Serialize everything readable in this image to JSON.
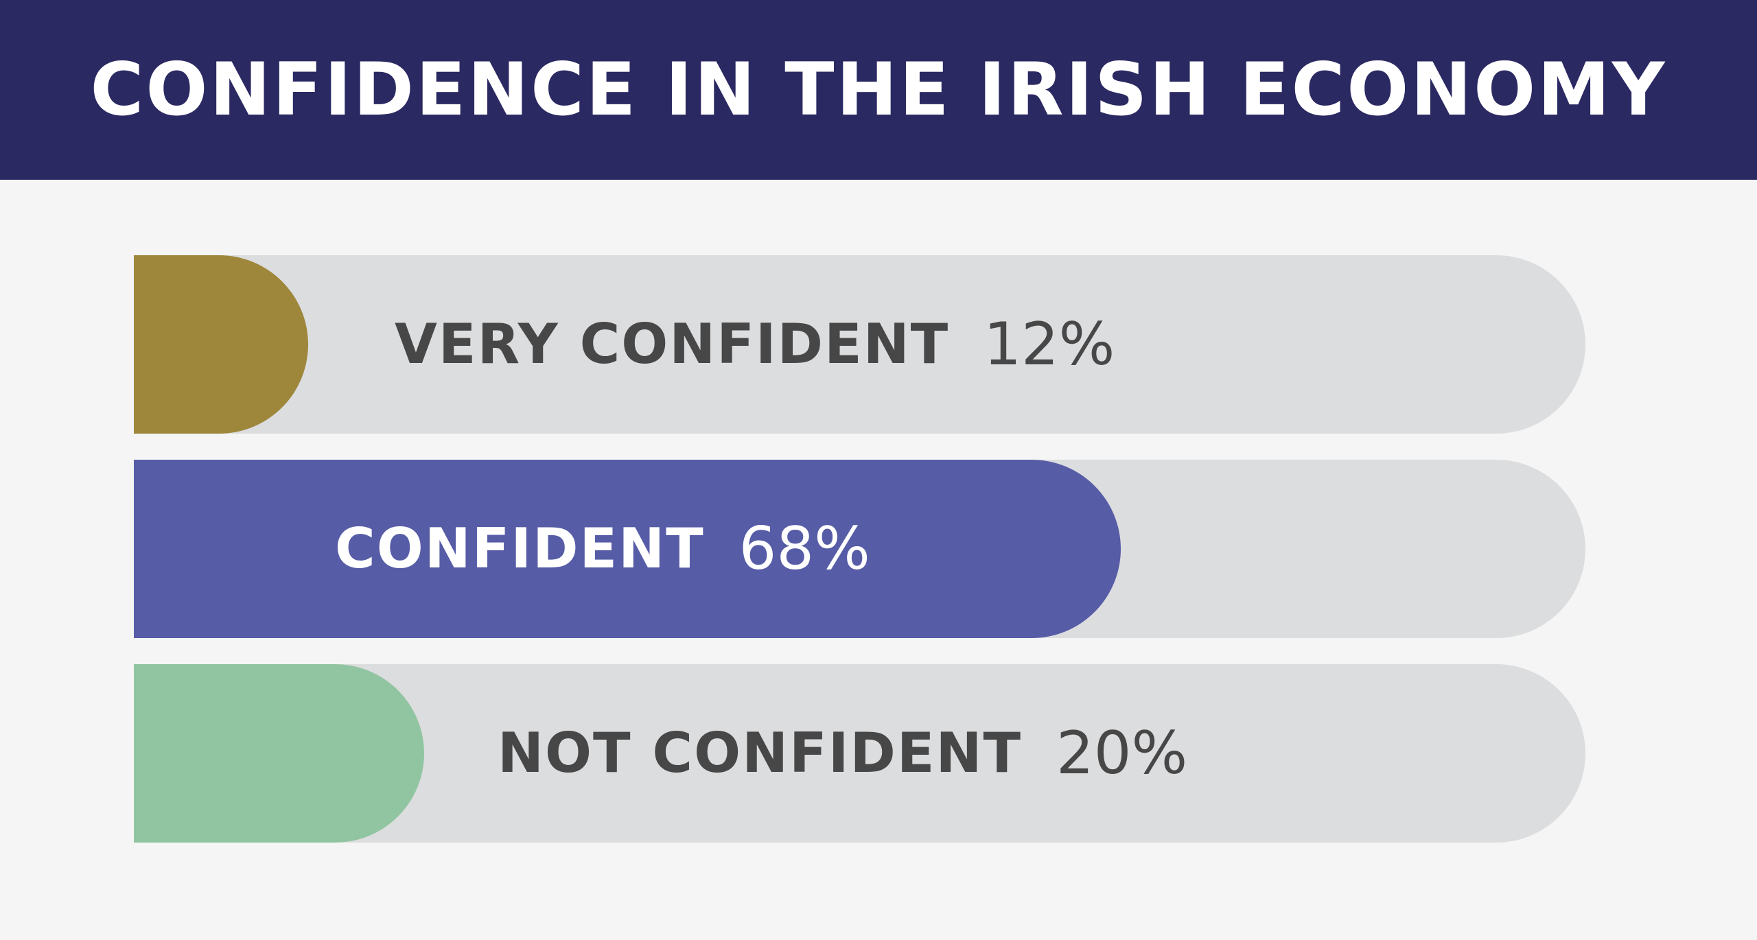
{
  "title": "CONFIDENCE IN THE IRISH ECONOMY",
  "colors": {
    "header_bg": "#2b2962",
    "track": "#dcdddf",
    "very_confident": "#9e873b",
    "confident": "#565ca6",
    "not_confident": "#91c5a1",
    "dark_text": "#474747",
    "light_text": "#ffffff"
  },
  "chart_data": {
    "type": "bar",
    "orientation": "horizontal",
    "title": "CONFIDENCE IN THE IRISH ECONOMY",
    "categories": [
      "VERY CONFIDENT",
      "CONFIDENT",
      "NOT CONFIDENT"
    ],
    "values": [
      12,
      68,
      20
    ],
    "value_labels": [
      "12%",
      "68%",
      "20%"
    ],
    "unit": "%",
    "xlim": [
      0,
      100
    ],
    "grid": false,
    "legend": "none",
    "bar_colors": [
      "#9e873b",
      "#565ca6",
      "#91c5a1"
    ],
    "label_colors": [
      "#474747",
      "#ffffff",
      "#474747"
    ]
  }
}
